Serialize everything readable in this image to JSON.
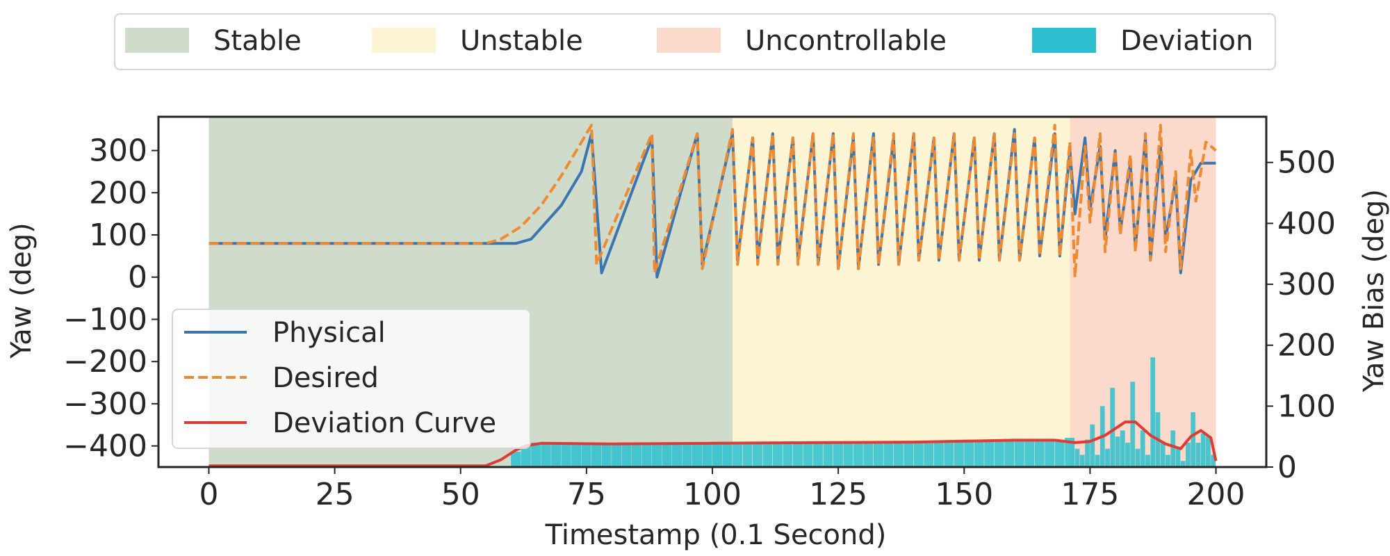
{
  "chart_data": {
    "type": "line",
    "xlabel": "Timestamp (0.1 Second)",
    "ylabel": "Yaw (deg)",
    "y2label": "Yaw Bias (deg)",
    "xlim": [
      -10,
      210
    ],
    "ylim": [
      -450,
      380
    ],
    "y2lim": [
      0,
      575
    ],
    "xticks": [
      0,
      25,
      50,
      75,
      100,
      125,
      150,
      175,
      200
    ],
    "yticks": [
      -400,
      -300,
      -200,
      -100,
      0,
      100,
      200,
      300
    ],
    "y2ticks": [
      0,
      100,
      200,
      300,
      400,
      500
    ],
    "regions": [
      {
        "name": "Stable",
        "start": 0,
        "end": 104,
        "color": "#cfdccc"
      },
      {
        "name": "Unstable",
        "start": 104,
        "end": 171,
        "color": "#fdf4d4"
      },
      {
        "name": "Uncontrollable",
        "start": 171,
        "end": 200,
        "color": "#fbdacb"
      }
    ],
    "top_legend": [
      {
        "label": "Stable",
        "color": "#cfdccc"
      },
      {
        "label": "Unstable",
        "color": "#fdf4d4"
      },
      {
        "label": "Uncontrollable",
        "color": "#fbdacb"
      },
      {
        "label": "Deviation",
        "color": "#2bbfcf"
      }
    ],
    "legend": [
      "Physical",
      "Desired",
      "Deviation Curve"
    ],
    "series": [
      {
        "name": "Physical",
        "axis": "left",
        "color": "#3b75af",
        "style": "solid",
        "points": [
          [
            0,
            80
          ],
          [
            61,
            80
          ],
          [
            64,
            90
          ],
          [
            70,
            170
          ],
          [
            74,
            250
          ],
          [
            76,
            340
          ],
          [
            78,
            10
          ],
          [
            88,
            330
          ],
          [
            89,
            0
          ],
          [
            97,
            340
          ],
          [
            98,
            30
          ],
          [
            104,
            340
          ],
          [
            105,
            40
          ],
          [
            108,
            330
          ],
          [
            109,
            40
          ],
          [
            112,
            340
          ],
          [
            113,
            40
          ],
          [
            116,
            330
          ],
          [
            117,
            40
          ],
          [
            120,
            340
          ],
          [
            121,
            30
          ],
          [
            124,
            340
          ],
          [
            125,
            20
          ],
          [
            128,
            330
          ],
          [
            129,
            20
          ],
          [
            132,
            340
          ],
          [
            133,
            30
          ],
          [
            136,
            330
          ],
          [
            137,
            30
          ],
          [
            140,
            340
          ],
          [
            141,
            40
          ],
          [
            144,
            330
          ],
          [
            145,
            40
          ],
          [
            148,
            340
          ],
          [
            149,
            40
          ],
          [
            152,
            330
          ],
          [
            153,
            40
          ],
          [
            156,
            340
          ],
          [
            157,
            40
          ],
          [
            160,
            350
          ],
          [
            161,
            40
          ],
          [
            164,
            330
          ],
          [
            165,
            50
          ],
          [
            168,
            340
          ],
          [
            169,
            50
          ],
          [
            171,
            300
          ],
          [
            172,
            150
          ],
          [
            174,
            330
          ],
          [
            175,
            160
          ],
          [
            177,
            310
          ],
          [
            178,
            90
          ],
          [
            180,
            300
          ],
          [
            181,
            110
          ],
          [
            183,
            270
          ],
          [
            184,
            70
          ],
          [
            186,
            330
          ],
          [
            187,
            40
          ],
          [
            189,
            310
          ],
          [
            190,
            90
          ],
          [
            192,
            230
          ],
          [
            193,
            10
          ],
          [
            195,
            230
          ],
          [
            197,
            270
          ],
          [
            200,
            270
          ]
        ]
      },
      {
        "name": "Desired",
        "axis": "left",
        "color": "#f08a30",
        "style": "dashed",
        "points": [
          [
            0,
            80
          ],
          [
            55,
            80
          ],
          [
            58,
            90
          ],
          [
            62,
            120
          ],
          [
            66,
            170
          ],
          [
            70,
            240
          ],
          [
            73,
            300
          ],
          [
            76,
            360
          ],
          [
            77,
            30
          ],
          [
            88,
            340
          ],
          [
            88.5,
            10
          ],
          [
            97,
            340
          ],
          [
            98,
            20
          ],
          [
            104,
            350
          ],
          [
            105,
            30
          ],
          [
            108,
            330
          ],
          [
            109,
            30
          ],
          [
            112,
            340
          ],
          [
            113,
            30
          ],
          [
            116,
            330
          ],
          [
            117,
            30
          ],
          [
            120,
            340
          ],
          [
            121,
            30
          ],
          [
            124,
            340
          ],
          [
            125,
            20
          ],
          [
            128,
            340
          ],
          [
            129,
            20
          ],
          [
            132,
            330
          ],
          [
            133,
            30
          ],
          [
            136,
            340
          ],
          [
            137,
            30
          ],
          [
            140,
            340
          ],
          [
            141,
            40
          ],
          [
            144,
            330
          ],
          [
            145,
            40
          ],
          [
            148,
            340
          ],
          [
            149,
            40
          ],
          [
            152,
            330
          ],
          [
            153,
            40
          ],
          [
            156,
            340
          ],
          [
            157,
            40
          ],
          [
            160,
            340
          ],
          [
            161,
            40
          ],
          [
            164,
            330
          ],
          [
            165,
            50
          ],
          [
            168,
            360
          ],
          [
            169,
            50
          ],
          [
            171,
            320
          ],
          [
            172,
            0
          ],
          [
            174,
            310
          ],
          [
            175,
            130
          ],
          [
            177,
            340
          ],
          [
            178,
            60
          ],
          [
            180,
            300
          ],
          [
            181,
            100
          ],
          [
            183,
            290
          ],
          [
            184,
            60
          ],
          [
            186,
            340
          ],
          [
            187,
            40
          ],
          [
            189,
            360
          ],
          [
            190,
            60
          ],
          [
            192,
            250
          ],
          [
            193,
            20
          ],
          [
            195,
            300
          ],
          [
            196,
            180
          ],
          [
            198,
            320
          ],
          [
            200,
            300
          ]
        ]
      },
      {
        "name": "Deviation Curve",
        "axis": "right",
        "color": "#e03a36",
        "style": "solid",
        "points": [
          [
            0,
            2
          ],
          [
            55,
            2
          ],
          [
            58,
            12
          ],
          [
            61,
            28
          ],
          [
            63,
            35
          ],
          [
            66,
            39
          ],
          [
            80,
            38
          ],
          [
            100,
            39
          ],
          [
            120,
            40
          ],
          [
            140,
            41
          ],
          [
            160,
            44
          ],
          [
            168,
            44
          ],
          [
            172,
            40
          ],
          [
            175,
            42
          ],
          [
            178,
            52
          ],
          [
            182,
            74
          ],
          [
            184,
            74
          ],
          [
            187,
            52
          ],
          [
            190,
            38
          ],
          [
            193,
            30
          ],
          [
            195,
            50
          ],
          [
            197,
            60
          ],
          [
            199,
            48
          ],
          [
            200,
            10
          ]
        ]
      }
    ],
    "deviation_bars": {
      "name": "Deviation",
      "axis": "right",
      "color": "#2bbfcf",
      "x": [
        60,
        62,
        64,
        66,
        68,
        70,
        72,
        74,
        76,
        78,
        80,
        82,
        84,
        86,
        88,
        90,
        92,
        94,
        96,
        98,
        100,
        102,
        104,
        106,
        108,
        110,
        112,
        114,
        116,
        118,
        120,
        122,
        124,
        126,
        128,
        130,
        132,
        134,
        136,
        138,
        140,
        142,
        144,
        146,
        148,
        150,
        152,
        154,
        156,
        158,
        160,
        162,
        164,
        166,
        168,
        170,
        172,
        173,
        174,
        175,
        176,
        177,
        178,
        179,
        180,
        181,
        182,
        183,
        184,
        185,
        186,
        187,
        188,
        189,
        190,
        191,
        192,
        193,
        194,
        195,
        196,
        197,
        198,
        199
      ],
      "values": [
        25,
        35,
        40,
        38,
        38,
        38,
        38,
        38,
        38,
        38,
        38,
        38,
        38,
        38,
        38,
        38,
        38,
        38,
        38,
        38,
        38,
        38,
        38,
        38,
        38,
        38,
        38,
        38,
        40,
        40,
        40,
        40,
        40,
        40,
        40,
        40,
        40,
        40,
        40,
        40,
        42,
        42,
        42,
        42,
        42,
        42,
        44,
        44,
        44,
        44,
        44,
        45,
        45,
        45,
        45,
        48,
        30,
        20,
        45,
        70,
        20,
        100,
        30,
        130,
        50,
        60,
        40,
        140,
        30,
        60,
        20,
        180,
        90,
        40,
        20,
        60,
        30,
        10,
        40,
        90,
        40,
        55,
        50,
        20
      ]
    }
  }
}
